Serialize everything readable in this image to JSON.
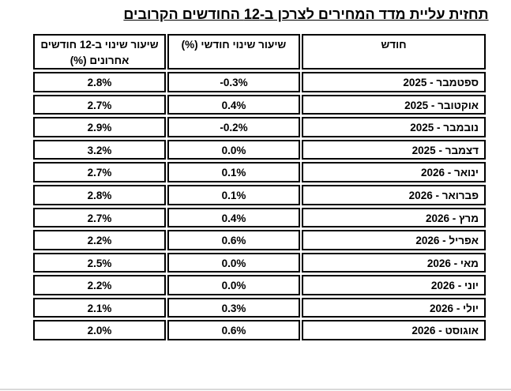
{
  "title": "תחזית עליית מדד המחירים לצרכן ב-12 החודשים הקרובים",
  "table": {
    "headers": {
      "month": "חודש",
      "monthly_change": "שיעור שינוי חודשי (%)",
      "annual_change": "שיעור שינוי ב-12 חודשים אחרונים (%)"
    },
    "rows": [
      {
        "month": "ספטמבר - 2025",
        "monthly": "-0.3%",
        "annual": "2.8%"
      },
      {
        "month": "אוקטובר - 2025",
        "monthly": "0.4%",
        "annual": "2.7%"
      },
      {
        "month": "נובמבר - 2025",
        "monthly": "-0.2%",
        "annual": "2.9%"
      },
      {
        "month": "דצמבר - 2025",
        "monthly": "0.0%",
        "annual": "3.2%"
      },
      {
        "month": "ינואר - 2026",
        "monthly": "0.1%",
        "annual": "2.7%"
      },
      {
        "month": "פברואר - 2026",
        "monthly": "0.1%",
        "annual": "2.8%"
      },
      {
        "month": "מרץ - 2026",
        "monthly": "0.4%",
        "annual": "2.7%"
      },
      {
        "month": "אפריל - 2026",
        "monthly": "0.6%",
        "annual": "2.2%"
      },
      {
        "month": "מאי - 2026",
        "monthly": "0.0%",
        "annual": "2.5%"
      },
      {
        "month": "יוני - 2026",
        "monthly": "0.0%",
        "annual": "2.2%"
      },
      {
        "month": "יולי - 2026",
        "monthly": "0.3%",
        "annual": "2.1%"
      },
      {
        "month": "אוגוסט - 2026",
        "monthly": "0.6%",
        "annual": "2.0%"
      }
    ]
  },
  "colors": {
    "text": "#000000",
    "border": "#000000",
    "background": "#ffffff"
  }
}
